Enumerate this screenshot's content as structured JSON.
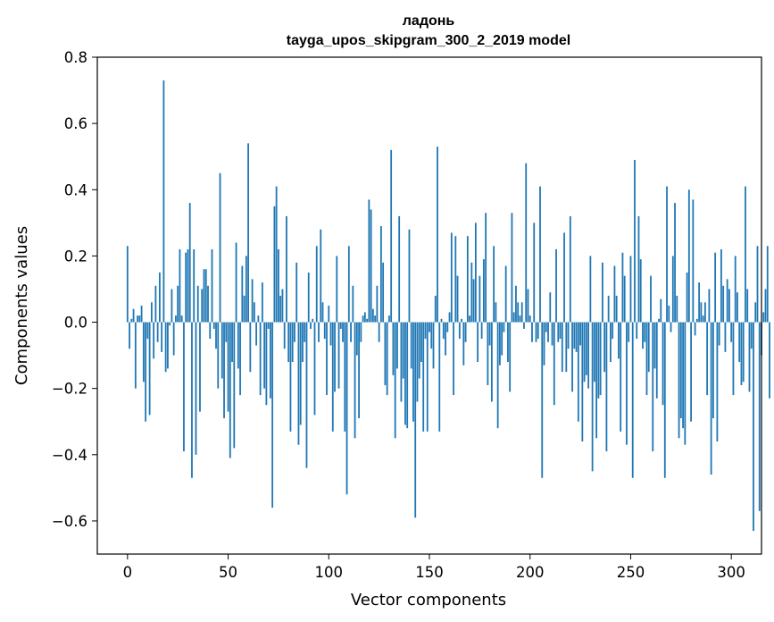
{
  "chart_data": {
    "type": "bar",
    "title": "ладонь",
    "subtitle": "tayga_upos_skipgram_300_2_2019 model",
    "xlabel": "Vector components",
    "ylabel": "Components values",
    "xlim": [
      -15,
      315
    ],
    "ylim": [
      -0.7,
      0.8
    ],
    "xticks": [
      0,
      50,
      100,
      150,
      200,
      250,
      300
    ],
    "yticks": [
      -0.6,
      -0.4,
      -0.2,
      0.0,
      0.2,
      0.4,
      0.6,
      0.8
    ],
    "ytick_labels": [
      "−0.6",
      "−0.4",
      "−0.2",
      "0.0",
      "0.2",
      "0.4",
      "0.6",
      "0.8"
    ],
    "grid": false,
    "bar_color": "#1f77b4",
    "values": [
      0.23,
      -0.08,
      0.01,
      0.04,
      -0.2,
      0.02,
      0.02,
      0.05,
      -0.18,
      -0.3,
      -0.05,
      -0.28,
      0.06,
      -0.11,
      0.11,
      -0.06,
      0.15,
      -0.09,
      0.73,
      -0.15,
      -0.14,
      -0.01,
      0.1,
      -0.1,
      0.02,
      0.11,
      0.22,
      0.02,
      -0.39,
      0.21,
      0.22,
      0.36,
      -0.47,
      0.22,
      -0.4,
      0.11,
      -0.27,
      0.1,
      0.16,
      0.16,
      0.11,
      -0.05,
      0.22,
      -0.02,
      -0.08,
      -0.2,
      0.45,
      -0.17,
      -0.29,
      -0.06,
      -0.27,
      -0.41,
      -0.12,
      -0.38,
      0.24,
      -0.14,
      -0.22,
      0.17,
      0.08,
      0.2,
      0.54,
      -0.15,
      0.13,
      0.06,
      -0.07,
      0.02,
      -0.22,
      0.12,
      -0.2,
      -0.25,
      -0.02,
      -0.23,
      -0.56,
      0.35,
      0.41,
      0.22,
      0.08,
      0.1,
      -0.08,
      0.32,
      -0.12,
      -0.33,
      -0.12,
      -0.06,
      0.18,
      -0.37,
      -0.31,
      -0.12,
      -0.06,
      -0.44,
      0.15,
      -0.02,
      0.01,
      -0.28,
      0.23,
      -0.06,
      0.28,
      0.06,
      -0.05,
      -0.22,
      0.05,
      -0.07,
      -0.33,
      -0.21,
      0.2,
      -0.2,
      -0.02,
      -0.06,
      -0.33,
      -0.52,
      0.23,
      -0.06,
      0.11,
      -0.35,
      -0.1,
      -0.29,
      -0.06,
      0.02,
      0.03,
      0.01,
      0.37,
      0.34,
      0.04,
      0.02,
      0.11,
      -0.06,
      0.29,
      0.18,
      -0.19,
      -0.22,
      0.02,
      0.52,
      -0.16,
      -0.35,
      -0.14,
      0.32,
      -0.24,
      -0.17,
      -0.31,
      -0.32,
      0.28,
      -0.14,
      -0.3,
      -0.59,
      -0.24,
      -0.17,
      -0.12,
      -0.33,
      -0.05,
      -0.33,
      -0.03,
      -0.08,
      -0.14,
      0.08,
      0.53,
      -0.33,
      0.01,
      -0.05,
      -0.1,
      -0.03,
      0.03,
      0.27,
      -0.22,
      0.26,
      0.14,
      -0.05,
      0.01,
      -0.13,
      -0.06,
      0.26,
      0.02,
      0.18,
      0.13,
      0.3,
      -0.12,
      0.14,
      -0.05,
      0.19,
      0.33,
      -0.19,
      -0.07,
      -0.24,
      0.23,
      0.06,
      -0.32,
      -0.13,
      -0.1,
      -0.03,
      0.17,
      -0.12,
      -0.21,
      0.33,
      0.03,
      0.11,
      0.06,
      0.02,
      0.06,
      -0.02,
      0.48,
      0.1,
      0.02,
      -0.06,
      0.3,
      -0.06,
      -0.05,
      0.41,
      -0.47,
      -0.13,
      -0.03,
      -0.06,
      0.09,
      -0.07,
      -0.25,
      0.22,
      -0.06,
      -0.05,
      -0.15,
      0.27,
      -0.15,
      -0.08,
      0.32,
      -0.21,
      -0.08,
      -0.09,
      -0.3,
      -0.07,
      -0.36,
      -0.18,
      -0.16,
      -0.2,
      0.2,
      -0.45,
      -0.18,
      -0.35,
      -0.23,
      -0.22,
      0.18,
      -0.15,
      -0.39,
      0.08,
      -0.12,
      -0.05,
      0.17,
      0.08,
      -0.11,
      -0.33,
      0.21,
      0.14,
      -0.37,
      -0.06,
      0.2,
      -0.47,
      0.49,
      -0.05,
      0.32,
      0.19,
      -0.08,
      -0.06,
      -0.22,
      -0.15,
      0.14,
      -0.39,
      -0.14,
      -0.23,
      0.01,
      0.07,
      -0.25,
      -0.47,
      0.41,
      0.05,
      -0.03,
      0.2,
      0.36,
      0.08,
      -0.35,
      -0.29,
      -0.32,
      -0.37,
      0.15,
      0.4,
      -0.3,
      0.37,
      -0.04,
      0.01,
      0.12,
      0.06,
      0.02,
      0.06,
      -0.22,
      0.1,
      -0.46,
      -0.29,
      0.21,
      -0.36,
      -0.07,
      0.22,
      0.11,
      -0.09,
      0.13,
      0.1,
      -0.06,
      -0.22,
      0.2,
      0.09,
      -0.12,
      -0.19,
      -0.18,
      0.41,
      0.1,
      -0.21,
      -0.08,
      -0.63,
      0.06,
      0.23,
      -0.57,
      -0.1,
      0.03,
      0.1,
      0.23,
      -0.23
    ]
  }
}
